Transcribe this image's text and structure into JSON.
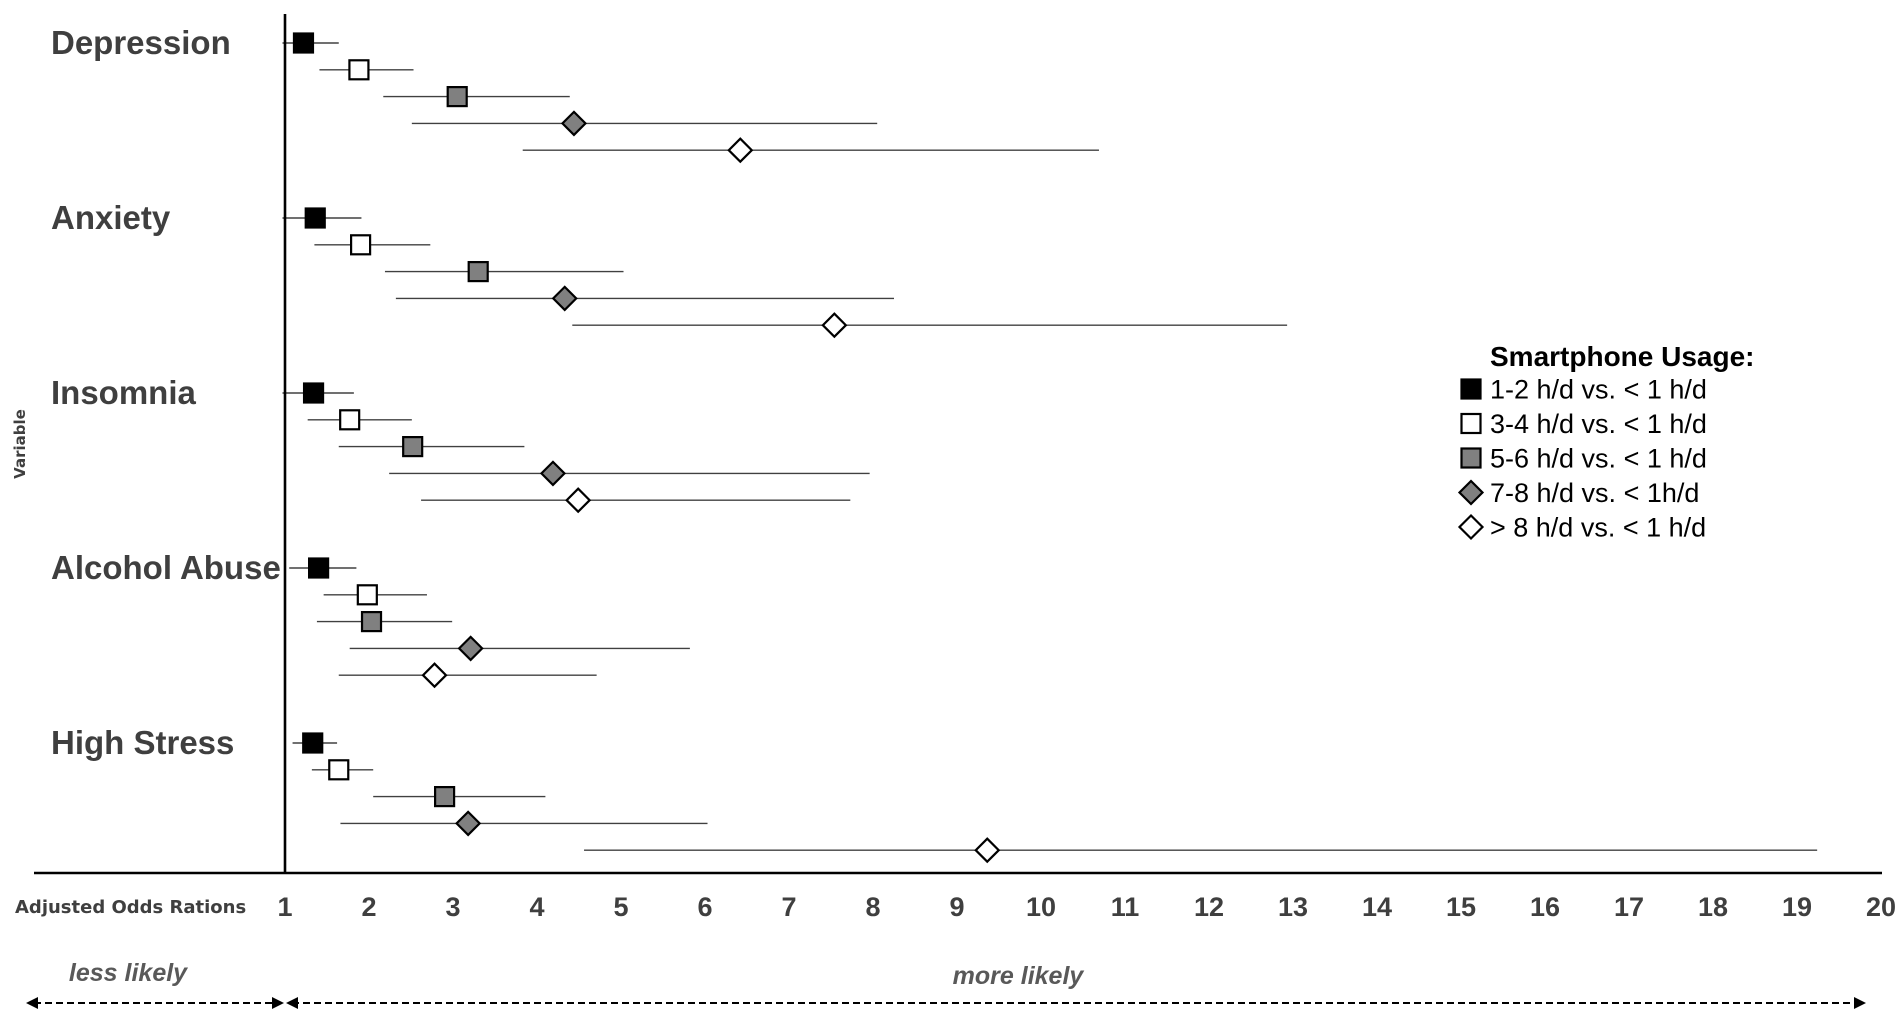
{
  "chart_data": {
    "type": "forest",
    "xlabel": "Adjusted Odds Rations",
    "ylabel": "Variable",
    "xticks": [
      1,
      2,
      3,
      4,
      5,
      6,
      7,
      8,
      9,
      10,
      11,
      12,
      13,
      14,
      15,
      16,
      17,
      18,
      19,
      20
    ],
    "xlim": [
      1,
      20
    ],
    "reference_line": 1,
    "direction_labels": {
      "left": "less likely",
      "right": "more likely"
    },
    "legend_title": "Smartphone Usage:",
    "series": [
      {
        "name": "1-2 h/d vs. < 1 h/d",
        "marker": "square",
        "color": "#000000"
      },
      {
        "name": "3-4 h/d vs. < 1 h/d",
        "marker": "square",
        "color": "#ffffff"
      },
      {
        "name": "5-6 h/d vs. < 1 h/d",
        "marker": "square",
        "color": "#808080"
      },
      {
        "name": "7-8 h/d vs. < 1h/d",
        "marker": "diamond",
        "color": "#808080"
      },
      {
        "name": "> 8 h/d vs. < 1 h/d",
        "marker": "diamond",
        "color": "#ffffff"
      }
    ],
    "groups": [
      {
        "label": "Depression",
        "estimates": [
          {
            "or": 1.22,
            "lo": 0.97,
            "hi": 1.64
          },
          {
            "or": 1.88,
            "lo": 1.41,
            "hi": 2.53
          },
          {
            "or": 3.05,
            "lo": 2.17,
            "hi": 4.39
          },
          {
            "or": 4.44,
            "lo": 2.51,
            "hi": 8.05
          },
          {
            "or": 6.42,
            "lo": 3.83,
            "hi": 10.69
          }
        ]
      },
      {
        "label": "Anxiety",
        "estimates": [
          {
            "or": 1.36,
            "lo": 0.97,
            "hi": 1.91
          },
          {
            "or": 1.9,
            "lo": 1.35,
            "hi": 2.73
          },
          {
            "or": 3.3,
            "lo": 2.19,
            "hi": 5.03
          },
          {
            "or": 4.33,
            "lo": 2.32,
            "hi": 8.25
          },
          {
            "or": 7.54,
            "lo": 4.42,
            "hi": 12.93
          }
        ]
      },
      {
        "label": "Insomnia",
        "estimates": [
          {
            "or": 1.34,
            "lo": 0.97,
            "hi": 1.82
          },
          {
            "or": 1.77,
            "lo": 1.27,
            "hi": 2.51
          },
          {
            "or": 2.52,
            "lo": 1.64,
            "hi": 3.85
          },
          {
            "or": 4.19,
            "lo": 2.24,
            "hi": 7.96
          },
          {
            "or": 4.49,
            "lo": 2.62,
            "hi": 7.73
          }
        ]
      },
      {
        "label": "Alcohol Abuse",
        "estimates": [
          {
            "or": 1.4,
            "lo": 1.05,
            "hi": 1.85
          },
          {
            "or": 1.98,
            "lo": 1.46,
            "hi": 2.69
          },
          {
            "or": 2.03,
            "lo": 1.38,
            "hi": 2.99
          },
          {
            "or": 3.21,
            "lo": 1.77,
            "hi": 5.82
          },
          {
            "or": 2.78,
            "lo": 1.64,
            "hi": 4.71
          }
        ]
      },
      {
        "label": "High Stress",
        "estimates": [
          {
            "or": 1.33,
            "lo": 1.09,
            "hi": 1.62
          },
          {
            "or": 1.64,
            "lo": 1.32,
            "hi": 2.05
          },
          {
            "or": 2.9,
            "lo": 2.05,
            "hi": 4.1
          },
          {
            "or": 3.18,
            "lo": 1.66,
            "hi": 6.03
          },
          {
            "or": 9.36,
            "lo": 4.56,
            "hi": 19.24
          }
        ]
      }
    ]
  }
}
